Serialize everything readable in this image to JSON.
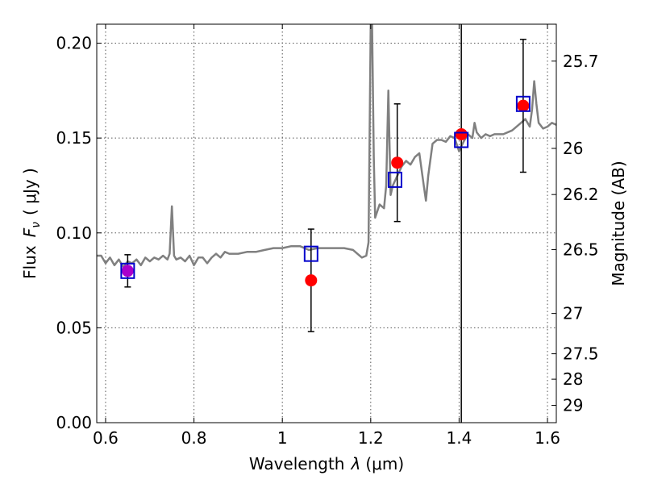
{
  "chart_data": {
    "type": "scatter",
    "xlabel": "Wavelength",
    "xlabel_symbol": "λ",
    "xlabel_unit": "(μm)",
    "ylabel": "Flux",
    "ylabel_symbol": "F",
    "ylabel_subscript": "ν",
    "ylabel_unit": "( μJy )",
    "y2label": "Magnitude (AB)",
    "xlim": [
      0.58,
      1.62
    ],
    "ylim": [
      0.0,
      0.21
    ],
    "grid": true,
    "x_ticks": [
      0.6,
      0.8,
      1.0,
      1.2,
      1.4,
      1.6
    ],
    "x_tick_labels": [
      "0.6",
      "0.8",
      "1",
      "1.2",
      "1.4",
      "1.6"
    ],
    "y_ticks": [
      0.0,
      0.05,
      0.1,
      0.15,
      0.2
    ],
    "y_tick_labels": [
      "0.00",
      "0.05",
      "0.10",
      "0.15",
      "0.20"
    ],
    "y2_tick_labels": [
      "25.7",
      "26",
      "26.2",
      "26.5",
      "27",
      "27.5",
      "28",
      "29"
    ],
    "vline_x": 1.405,
    "colors": {
      "spectrum": "#808080",
      "observed": "#ff0000",
      "model": "#0000cc",
      "overlap": "#aa00cc",
      "errorbar": "#000000",
      "grid": "#555555"
    },
    "series": [
      {
        "kind": "spectrum",
        "points": [
          [
            0.58,
            0.088
          ],
          [
            0.59,
            0.088
          ],
          [
            0.6,
            0.084
          ],
          [
            0.61,
            0.087
          ],
          [
            0.62,
            0.083
          ],
          [
            0.63,
            0.086
          ],
          [
            0.64,
            0.082
          ],
          [
            0.65,
            0.085
          ],
          [
            0.66,
            0.084
          ],
          [
            0.67,
            0.086
          ],
          [
            0.68,
            0.083
          ],
          [
            0.69,
            0.087
          ],
          [
            0.7,
            0.085
          ],
          [
            0.71,
            0.087
          ],
          [
            0.72,
            0.086
          ],
          [
            0.73,
            0.088
          ],
          [
            0.74,
            0.086
          ],
          [
            0.745,
            0.089
          ],
          [
            0.75,
            0.114
          ],
          [
            0.755,
            0.088
          ],
          [
            0.76,
            0.086
          ],
          [
            0.77,
            0.087
          ],
          [
            0.78,
            0.085
          ],
          [
            0.79,
            0.088
          ],
          [
            0.8,
            0.083
          ],
          [
            0.81,
            0.087
          ],
          [
            0.82,
            0.087
          ],
          [
            0.83,
            0.084
          ],
          [
            0.84,
            0.087
          ],
          [
            0.85,
            0.089
          ],
          [
            0.86,
            0.087
          ],
          [
            0.87,
            0.09
          ],
          [
            0.88,
            0.089
          ],
          [
            0.89,
            0.089
          ],
          [
            0.9,
            0.089
          ],
          [
            0.92,
            0.09
          ],
          [
            0.94,
            0.09
          ],
          [
            0.96,
            0.091
          ],
          [
            0.98,
            0.092
          ],
          [
            1.0,
            0.092
          ],
          [
            1.02,
            0.093
          ],
          [
            1.04,
            0.093
          ],
          [
            1.06,
            0.091
          ],
          [
            1.08,
            0.092
          ],
          [
            1.1,
            0.092
          ],
          [
            1.12,
            0.092
          ],
          [
            1.14,
            0.092
          ],
          [
            1.16,
            0.091
          ],
          [
            1.18,
            0.087
          ],
          [
            1.19,
            0.088
          ],
          [
            1.195,
            0.095
          ],
          [
            1.2,
            0.21
          ],
          [
            1.203,
            0.21
          ],
          [
            1.207,
            0.14
          ],
          [
            1.21,
            0.108
          ],
          [
            1.22,
            0.115
          ],
          [
            1.23,
            0.113
          ],
          [
            1.235,
            0.125
          ],
          [
            1.24,
            0.175
          ],
          [
            1.245,
            0.12
          ],
          [
            1.25,
            0.125
          ],
          [
            1.26,
            0.13
          ],
          [
            1.27,
            0.135
          ],
          [
            1.28,
            0.138
          ],
          [
            1.29,
            0.136
          ],
          [
            1.3,
            0.14
          ],
          [
            1.31,
            0.142
          ],
          [
            1.32,
            0.125
          ],
          [
            1.325,
            0.117
          ],
          [
            1.33,
            0.13
          ],
          [
            1.34,
            0.147
          ],
          [
            1.35,
            0.149
          ],
          [
            1.36,
            0.149
          ],
          [
            1.37,
            0.148
          ],
          [
            1.38,
            0.151
          ],
          [
            1.39,
            0.15
          ],
          [
            1.4,
            0.143
          ],
          [
            1.41,
            0.148
          ],
          [
            1.42,
            0.152
          ],
          [
            1.43,
            0.15
          ],
          [
            1.435,
            0.158
          ],
          [
            1.44,
            0.153
          ],
          [
            1.45,
            0.15
          ],
          [
            1.46,
            0.152
          ],
          [
            1.47,
            0.151
          ],
          [
            1.48,
            0.152
          ],
          [
            1.5,
            0.152
          ],
          [
            1.52,
            0.154
          ],
          [
            1.54,
            0.158
          ],
          [
            1.55,
            0.16
          ],
          [
            1.56,
            0.156
          ],
          [
            1.565,
            0.165
          ],
          [
            1.57,
            0.18
          ],
          [
            1.575,
            0.168
          ],
          [
            1.58,
            0.158
          ],
          [
            1.59,
            0.155
          ],
          [
            1.6,
            0.156
          ],
          [
            1.61,
            0.158
          ],
          [
            1.62,
            0.157
          ]
        ]
      },
      {
        "kind": "observed",
        "points": [
          {
            "x": 0.65,
            "y": 0.08,
            "err": 0.0085
          },
          {
            "x": 1.065,
            "y": 0.075,
            "err": 0.027
          },
          {
            "x": 1.26,
            "y": 0.137,
            "err": 0.031
          },
          {
            "x": 1.405,
            "y": 0.152,
            "err": 0.0
          },
          {
            "x": 1.545,
            "y": 0.167,
            "err": 0.035
          }
        ]
      },
      {
        "kind": "model",
        "points": [
          {
            "x": 0.65,
            "y": 0.08
          },
          {
            "x": 1.065,
            "y": 0.089
          },
          {
            "x": 1.255,
            "y": 0.128
          },
          {
            "x": 1.405,
            "y": 0.149
          },
          {
            "x": 1.545,
            "y": 0.168
          }
        ]
      }
    ]
  }
}
